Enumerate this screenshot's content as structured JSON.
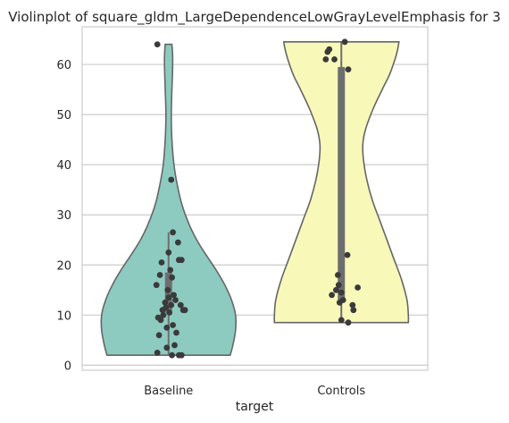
{
  "chart_data": {
    "type": "violin",
    "title": "Violinplot of square_gldm_LargeDependenceLowGrayLevelEmphasis for 3",
    "xlabel": "target",
    "ylabel": "",
    "ylim": [
      -1,
      67.5
    ],
    "yticks": [
      0,
      10,
      20,
      30,
      40,
      50,
      60
    ],
    "grid": true,
    "categories": [
      "Baseline",
      "Controls"
    ],
    "colors": {
      "Baseline": "#8dcbc0",
      "Controls": "#f8f8b9",
      "outline": "#666666",
      "points": "#3a3a3a",
      "box": "#6e6e6e"
    },
    "violins": [
      {
        "name": "Baseline",
        "range": [
          2,
          64
        ],
        "quartiles": [
          10.5,
          18.5
        ],
        "whiskers": [
          2,
          26.5
        ],
        "profile": [
          [
            2,
            0.92
          ],
          [
            4,
            0.96
          ],
          [
            7,
            1.0
          ],
          [
            10,
            1.0
          ],
          [
            13,
            0.94
          ],
          [
            16,
            0.84
          ],
          [
            19,
            0.71
          ],
          [
            22,
            0.56
          ],
          [
            25,
            0.42
          ],
          [
            28,
            0.31
          ],
          [
            32,
            0.2
          ],
          [
            36,
            0.13
          ],
          [
            40,
            0.08
          ],
          [
            45,
            0.05
          ],
          [
            50,
            0.04
          ],
          [
            55,
            0.05
          ],
          [
            59,
            0.06
          ],
          [
            62,
            0.06
          ],
          [
            64,
            0.05
          ]
        ]
      },
      {
        "name": "Controls",
        "range": [
          8.5,
          64.5
        ],
        "quartiles": [
          13,
          59.5
        ],
        "whiskers": [
          8.5,
          64.5
        ],
        "profile": [
          [
            8.5,
            1.0
          ],
          [
            10,
            1.0
          ],
          [
            13,
            0.98
          ],
          [
            17,
            0.9
          ],
          [
            21,
            0.79
          ],
          [
            25,
            0.68
          ],
          [
            29,
            0.57
          ],
          [
            33,
            0.46
          ],
          [
            37,
            0.38
          ],
          [
            41,
            0.33
          ],
          [
            44,
            0.32
          ],
          [
            47,
            0.36
          ],
          [
            51,
            0.47
          ],
          [
            55,
            0.61
          ],
          [
            58,
            0.72
          ],
          [
            61,
            0.8
          ],
          [
            63,
            0.84
          ],
          [
            64.5,
            0.86
          ]
        ]
      }
    ],
    "points": [
      {
        "group": "Baseline",
        "values": [
          64,
          37,
          26.5,
          24.5,
          22.5,
          21,
          21,
          20.5,
          19,
          18,
          17.5,
          16,
          15,
          14,
          13.5,
          13,
          12.5,
          12,
          12,
          11.5,
          11,
          11,
          11,
          10.5,
          10,
          9.5,
          9,
          8,
          7.5,
          6.5,
          6,
          4,
          3.5,
          2.5,
          2,
          2,
          2
        ],
        "jitter": [
          -0.13,
          0.03,
          0.05,
          0.11,
          0.0,
          0.12,
          0.15,
          -0.08,
          0.02,
          -0.1,
          0.04,
          -0.14,
          -0.01,
          0.06,
          0.0,
          0.08,
          -0.04,
          0.03,
          0.14,
          -0.03,
          0.17,
          0.19,
          -0.07,
          0.01,
          -0.06,
          -0.12,
          -0.09,
          0.05,
          -0.02,
          0.09,
          -0.11,
          0.07,
          -0.02,
          -0.13,
          0.04,
          0.12,
          0.15
        ]
      },
      {
        "group": "Controls",
        "values": [
          64.5,
          63,
          62.5,
          61,
          61,
          59,
          22,
          18,
          16,
          15.5,
          15,
          14.5,
          14,
          13,
          12.5,
          12,
          11,
          9,
          8.5
        ],
        "jitter": [
          0.04,
          -0.14,
          -0.16,
          -0.18,
          -0.08,
          0.08,
          0.07,
          -0.04,
          -0.03,
          0.19,
          -0.06,
          0.0,
          -0.11,
          0.02,
          -0.02,
          0.13,
          0.14,
          0.0,
          0.08
        ]
      }
    ]
  }
}
